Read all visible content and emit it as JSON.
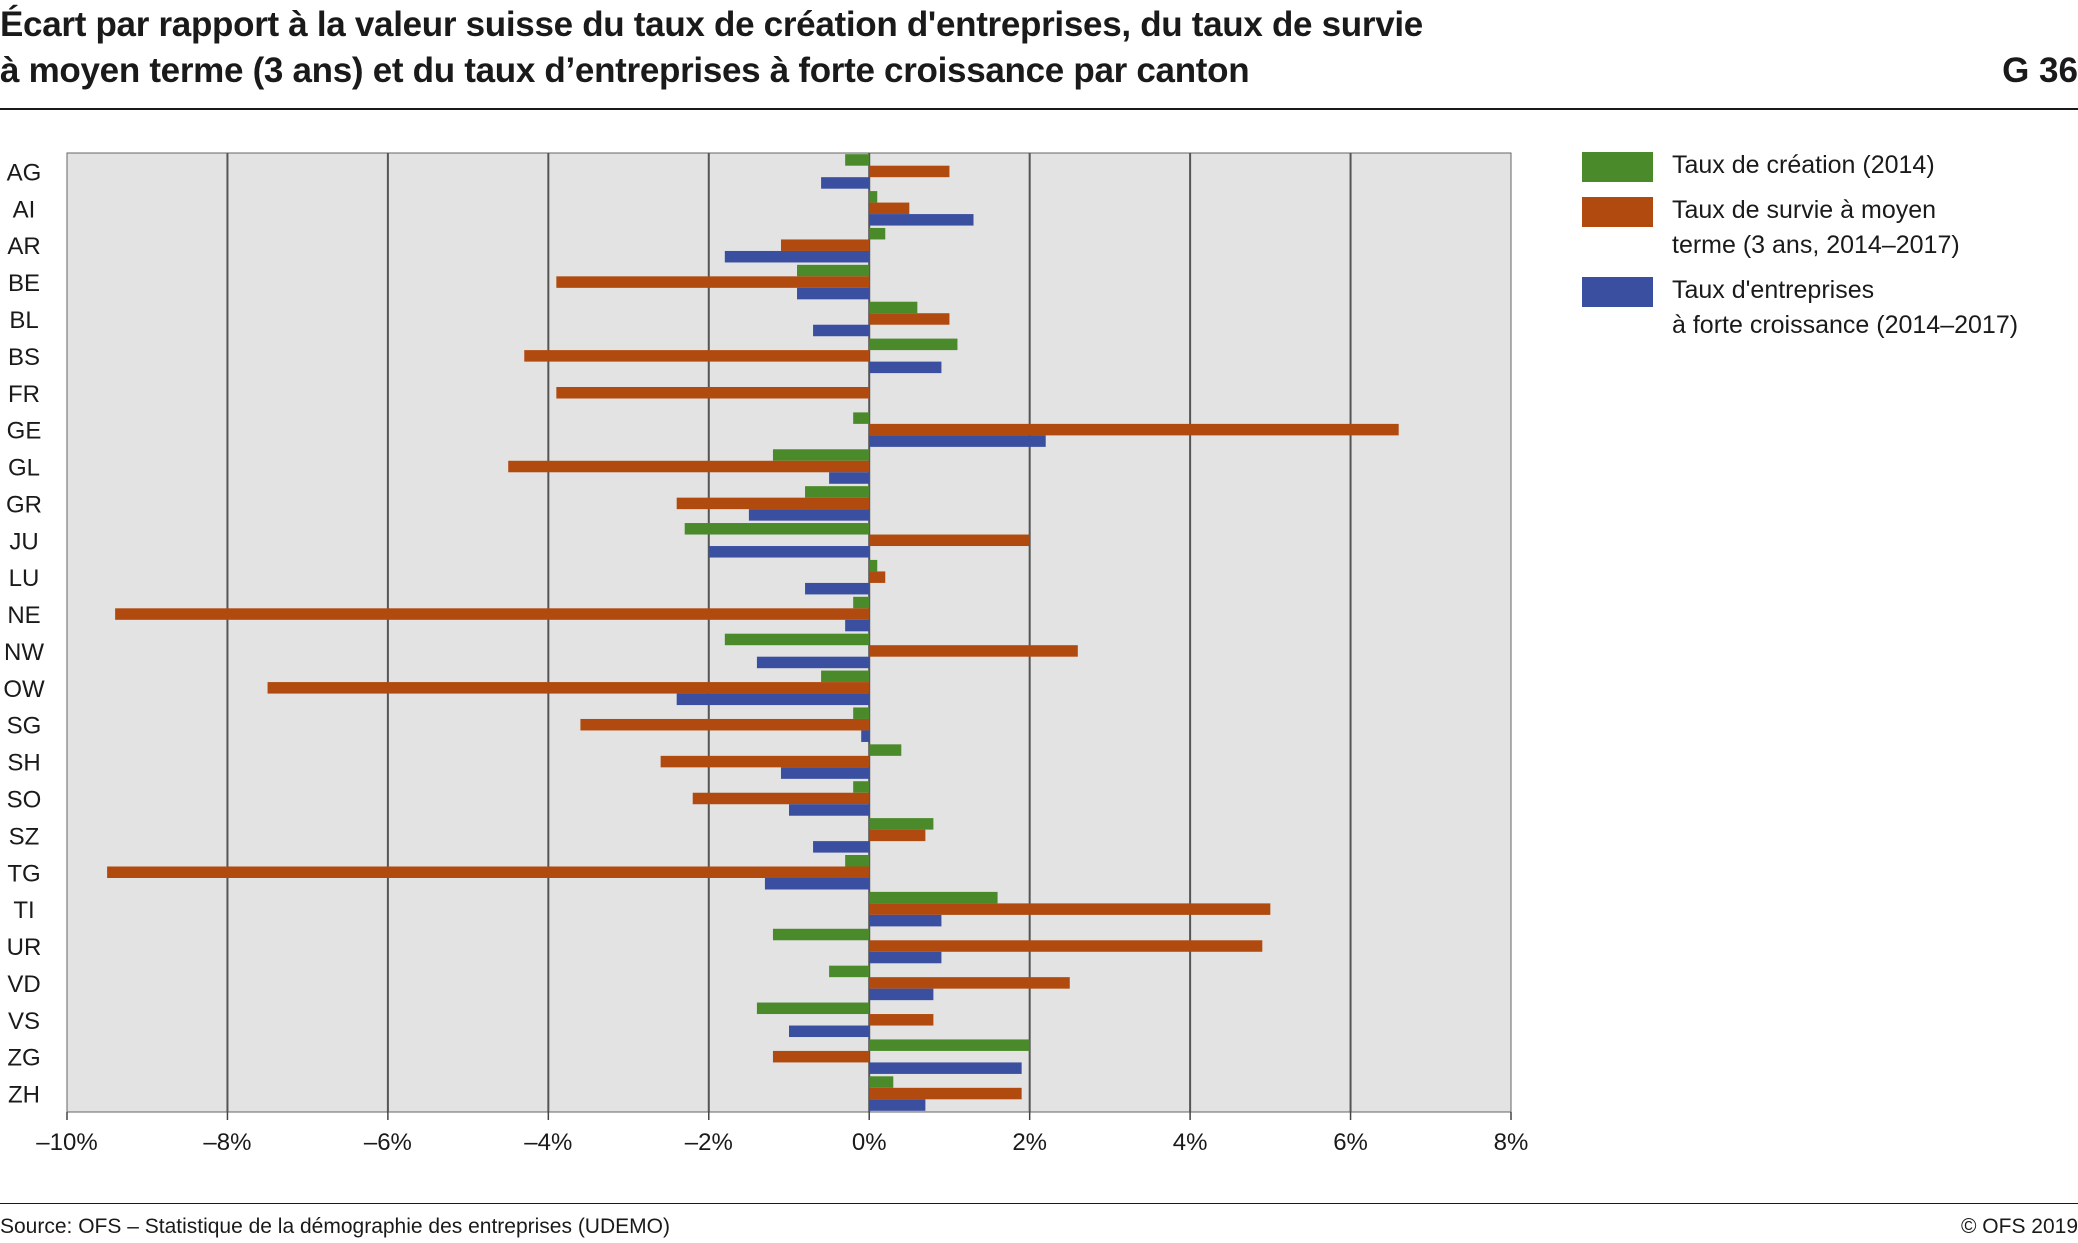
{
  "header": {
    "title_line1": "Écart par rapport à la valeur suisse du taux de création d'entreprises, du taux de survie",
    "title_line2": "à moyen terme (3 ans) et du taux d’entreprises à forte croissance par canton",
    "chart_id": "G 36"
  },
  "footer": {
    "source": "Source: OFS – Statistique de la démographie des entreprises (UDEMO)",
    "copyright": "© OFS 2019"
  },
  "colors": {
    "plot_background": "#e3e3e3",
    "gridline": "#555555",
    "series": [
      "#4a8a2a",
      "#b04a0f",
      "#3a4fa0"
    ]
  },
  "chart_data": {
    "type": "bar",
    "orientation": "horizontal",
    "title": "Écart par rapport à la valeur suisse du taux de création d'entreprises, du taux de survie à moyen terme (3 ans) et du taux d’entreprises à forte croissance par canton",
    "xlabel": "",
    "ylabel": "",
    "xlim": [
      -10,
      8
    ],
    "xticks": [
      -10,
      -8,
      -6,
      -4,
      -2,
      0,
      2,
      4,
      6,
      8
    ],
    "xtick_labels": [
      "–10%",
      "–8%",
      "–6%",
      "–4%",
      "–2%",
      "0%",
      "2%",
      "4%",
      "6%",
      "8%"
    ],
    "grid": "vertical",
    "legend_position": "right",
    "categories": [
      "AG",
      "AI",
      "AR",
      "BE",
      "BL",
      "BS",
      "FR",
      "GE",
      "GL",
      "GR",
      "JU",
      "LU",
      "NE",
      "NW",
      "OW",
      "SG",
      "SH",
      "SO",
      "SZ",
      "TG",
      "TI",
      "UR",
      "VD",
      "VS",
      "ZG",
      "ZH"
    ],
    "series": [
      {
        "name": "Taux de création (2014)",
        "values": [
          -0.3,
          0.1,
          0.2,
          -0.9,
          0.6,
          1.1,
          0.0,
          -0.2,
          -1.2,
          -0.8,
          -2.3,
          0.1,
          -0.2,
          -1.8,
          -0.6,
          -0.2,
          0.4,
          -0.2,
          0.8,
          -0.3,
          1.6,
          -1.2,
          -0.5,
          -1.4,
          2.0,
          0.3
        ]
      },
      {
        "name": "Taux de survie à moyen terme (3 ans, 2014–2017)",
        "legend_lines": [
          "Taux de survie à moyen",
          "terme (3 ans, 2014–2017)"
        ],
        "values": [
          1.0,
          0.5,
          -1.1,
          -3.9,
          1.0,
          -4.3,
          -3.9,
          6.6,
          -4.5,
          -2.4,
          2.0,
          0.2,
          -9.4,
          2.6,
          -7.5,
          -3.6,
          -2.6,
          -2.2,
          0.7,
          -9.5,
          5.0,
          4.9,
          2.5,
          0.8,
          -1.2,
          1.9
        ]
      },
      {
        "name": "Taux d'entreprises à forte croissance (2014–2017)",
        "legend_lines": [
          "Taux d'entreprises",
          "à forte croissance (2014–2017)"
        ],
        "values": [
          -0.6,
          1.3,
          -1.8,
          -0.9,
          -0.7,
          0.9,
          0.0,
          2.2,
          -0.5,
          -1.5,
          -2.0,
          -0.8,
          -0.3,
          -1.4,
          -2.4,
          -0.1,
          -1.1,
          -1.0,
          -0.7,
          -1.3,
          0.9,
          0.9,
          0.8,
          -1.0,
          1.9,
          0.7
        ]
      }
    ]
  }
}
